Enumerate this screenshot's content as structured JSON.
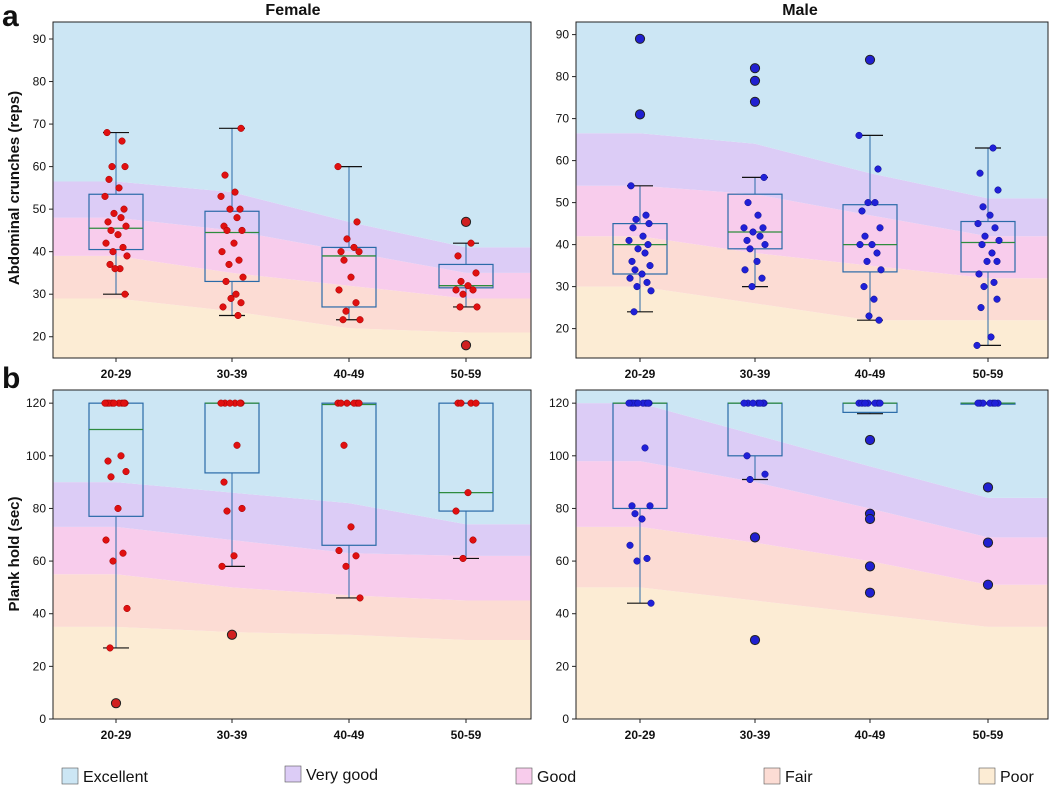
{
  "panel_labels": {
    "a": "a",
    "b": "b"
  },
  "titles": {
    "female": "Female",
    "male": "Male"
  },
  "ylabels": {
    "crunches": "Abdominal crunches (reps)",
    "plank": "Plank hold (sec)"
  },
  "legend": [
    {
      "label": "Excellent",
      "color": "#cce6f4"
    },
    {
      "label": "Very good",
      "color": "#dcccf6"
    },
    {
      "label": "Good",
      "color": "#f8ccec"
    },
    {
      "label": "Fair",
      "color": "#fcdcd4"
    },
    {
      "label": "Poor",
      "color": "#fcecd4"
    }
  ],
  "chart_data": [
    {
      "type": "box",
      "id": "crunches-female",
      "title": "Female",
      "ylabel": "Abdominal crunches (reps)",
      "categories": [
        "20-29",
        "30-39",
        "40-49",
        "50-59"
      ],
      "ylim": [
        15,
        94
      ],
      "yticks": [
        20,
        30,
        40,
        50,
        60,
        70,
        80,
        90
      ],
      "bands": {
        "poor_max": [
          29,
          26,
          22,
          21
        ],
        "fair_max": [
          39,
          35,
          32,
          29
        ],
        "good_max": [
          48,
          45,
          40,
          35
        ],
        "verygood_max": [
          56.5,
          54,
          47,
          41
        ]
      },
      "boxes": [
        {
          "category": "20-29",
          "whislo": 30,
          "q1": 40.5,
          "med": 45.5,
          "q3": 53.5,
          "whishi": 68,
          "fliers": []
        },
        {
          "category": "30-39",
          "whislo": 25,
          "q1": 33,
          "med": 44.5,
          "q3": 49.5,
          "whishi": 69,
          "fliers": []
        },
        {
          "category": "40-49",
          "whislo": 24,
          "q1": 27,
          "med": 39,
          "q3": 41,
          "whishi": 60,
          "fliers": []
        },
        {
          "category": "50-59",
          "whislo": 27,
          "q1": 31.5,
          "med": 32,
          "q3": 37,
          "whishi": 42,
          "fliers": [
            47,
            18
          ]
        }
      ],
      "points": [
        [
          68,
          66,
          60,
          60,
          57,
          55,
          53,
          50,
          49,
          48,
          47,
          46,
          45,
          44,
          42,
          41,
          40,
          39,
          37,
          36,
          36,
          30
        ],
        [
          69,
          58,
          54,
          53,
          50,
          50,
          48,
          46,
          45,
          45,
          42,
          40,
          38,
          37,
          34,
          33,
          30,
          29,
          28,
          27,
          25
        ],
        [
          60,
          47,
          43,
          41,
          40,
          40,
          38,
          34,
          31,
          28,
          26,
          24,
          24
        ],
        [
          42,
          39,
          35,
          33,
          32,
          31,
          31,
          30,
          27,
          27
        ]
      ]
    },
    {
      "type": "box",
      "id": "crunches-male",
      "title": "Male",
      "ylabel": "",
      "categories": [
        "20-29",
        "30-39",
        "40-49",
        "50-59"
      ],
      "ylim": [
        13,
        93
      ],
      "yticks": [
        20,
        30,
        40,
        50,
        60,
        70,
        80,
        90
      ],
      "bands": {
        "poor_max": [
          30,
          26,
          22,
          22
        ],
        "fair_max": [
          42,
          38,
          35,
          32
        ],
        "good_max": [
          54,
          52,
          47,
          42
        ],
        "verygood_max": [
          66.5,
          64,
          57,
          51
        ]
      },
      "boxes": [
        {
          "category": "20-29",
          "whislo": 24,
          "q1": 33,
          "med": 40,
          "q3": 45,
          "whishi": 54,
          "fliers": [
            89,
            71
          ]
        },
        {
          "category": "30-39",
          "whislo": 30,
          "q1": 39,
          "med": 43,
          "q3": 52,
          "whishi": 56,
          "fliers": [
            82,
            79,
            74
          ]
        },
        {
          "category": "40-49",
          "whislo": 22,
          "q1": 33.5,
          "med": 40,
          "q3": 49.5,
          "whishi": 66,
          "fliers": [
            84
          ]
        },
        {
          "category": "50-59",
          "whislo": 16,
          "q1": 33.5,
          "med": 40.5,
          "q3": 45.5,
          "whishi": 63,
          "fliers": []
        }
      ],
      "points": [
        [
          54,
          47,
          46,
          45,
          44,
          42,
          41,
          40,
          39,
          38,
          36,
          35,
          34,
          33,
          32,
          31,
          30,
          29,
          24
        ],
        [
          56,
          50,
          47,
          44,
          44,
          43,
          42,
          41,
          40,
          39,
          36,
          34,
          32,
          30
        ],
        [
          66,
          58,
          50,
          50,
          48,
          44,
          42,
          40,
          40,
          38,
          36,
          34,
          30,
          27,
          23,
          22
        ],
        [
          63,
          57,
          53,
          49,
          47,
          45,
          44,
          42,
          41,
          40,
          38,
          36,
          36,
          33,
          31,
          30,
          27,
          25,
          18,
          16
        ]
      ]
    },
    {
      "type": "box",
      "id": "plank-female",
      "title": "",
      "ylabel": "Plank hold (sec)",
      "categories": [
        "20-29",
        "30-39",
        "40-49",
        "50-59"
      ],
      "ylim": [
        0,
        125
      ],
      "yticks": [
        0,
        20,
        40,
        60,
        80,
        100,
        120
      ],
      "bands": {
        "poor_max": [
          35,
          33,
          32,
          30
        ],
        "fair_max": [
          55,
          50,
          47,
          45
        ],
        "good_max": [
          73,
          68,
          63,
          62
        ],
        "verygood_max": [
          90,
          86,
          82,
          74
        ]
      },
      "boxes": [
        {
          "category": "20-29",
          "whislo": 27,
          "q1": 77,
          "med": 110,
          "q3": 120,
          "whishi": 120,
          "fliers": [
            6
          ]
        },
        {
          "category": "30-39",
          "whislo": 58,
          "q1": 93.5,
          "med": 120,
          "q3": 120,
          "whishi": 120,
          "fliers": [
            32
          ]
        },
        {
          "category": "40-49",
          "whislo": 46,
          "q1": 66,
          "med": 119.5,
          "q3": 120,
          "whishi": 120,
          "fliers": []
        },
        {
          "category": "50-59",
          "whislo": 61,
          "q1": 79,
          "med": 86,
          "q3": 120,
          "whishi": 120,
          "fliers": []
        }
      ],
      "points": [
        [
          120,
          120,
          120,
          120,
          120,
          120,
          120,
          120,
          120,
          100,
          98,
          94,
          92,
          80,
          68,
          63,
          60,
          42,
          27
        ],
        [
          120,
          120,
          120,
          120,
          120,
          120,
          104,
          90,
          80,
          79,
          62,
          58
        ],
        [
          120,
          120,
          120,
          120,
          120,
          120,
          104,
          73,
          64,
          62,
          58,
          46
        ],
        [
          120,
          120,
          120,
          120,
          86,
          79,
          68,
          61
        ]
      ]
    },
    {
      "type": "box",
      "id": "plank-male",
      "title": "",
      "ylabel": "",
      "categories": [
        "20-29",
        "30-39",
        "40-49",
        "50-59"
      ],
      "ylim": [
        0,
        125
      ],
      "yticks": [
        0,
        20,
        40,
        60,
        80,
        100,
        120
      ],
      "bands": {
        "poor_max": [
          50,
          45,
          40,
          35
        ],
        "fair_max": [
          73,
          67,
          60,
          51
        ],
        "good_max": [
          98,
          90,
          80,
          69
        ],
        "verygood_max": [
          120,
          108,
          96,
          84
        ]
      },
      "boxes": [
        {
          "category": "20-29",
          "whislo": 44,
          "q1": 80,
          "med": 120,
          "q3": 120,
          "whishi": 120,
          "fliers": []
        },
        {
          "category": "30-39",
          "whislo": 91,
          "q1": 100,
          "med": 120,
          "q3": 120,
          "whishi": 120,
          "fliers": [
            69,
            30
          ]
        },
        {
          "category": "40-49",
          "whislo": 116,
          "q1": 116.5,
          "med": 120,
          "q3": 120,
          "whishi": 120,
          "fliers": [
            106,
            78,
            76,
            58,
            48
          ]
        },
        {
          "category": "50-59",
          "whislo": 120,
          "q1": 120,
          "med": 120,
          "q3": 120,
          "whishi": 120,
          "fliers": [
            88,
            67,
            51
          ]
        }
      ],
      "points": [
        [
          120,
          120,
          120,
          120,
          120,
          120,
          120,
          120,
          120,
          103,
          81,
          81,
          78,
          76,
          66,
          61,
          60,
          44
        ],
        [
          120,
          120,
          120,
          120,
          120,
          120,
          120,
          100,
          93,
          91
        ],
        [
          120,
          120,
          120,
          120,
          120,
          120,
          120
        ],
        [
          120,
          120,
          120,
          120,
          120,
          120,
          120
        ]
      ]
    }
  ]
}
